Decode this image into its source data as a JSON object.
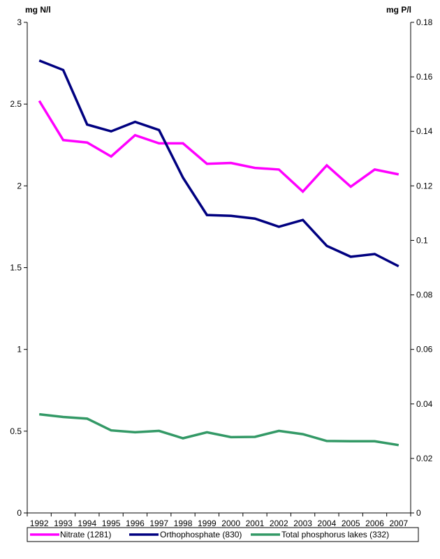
{
  "chart_data": {
    "type": "line",
    "categories": [
      "1992",
      "1993",
      "1994",
      "1995",
      "1996",
      "1997",
      "1998",
      "1999",
      "2000",
      "2001",
      "2002",
      "2003",
      "2004",
      "2005",
      "2006",
      "2007"
    ],
    "left_axis": {
      "unit_label": "mg N/l",
      "ylim": [
        0,
        3
      ],
      "ticks": [
        0,
        0.5,
        1,
        1.5,
        2,
        2.5,
        3
      ],
      "tick_labels": [
        "0",
        "0.5",
        "1",
        "1.5",
        "2",
        "2.5",
        "3"
      ]
    },
    "right_axis": {
      "unit_label": "mg P/l",
      "ylim": [
        0,
        0.18
      ],
      "ticks": [
        0,
        0.02,
        0.04,
        0.06,
        0.08,
        0.1,
        0.12,
        0.14,
        0.16,
        0.18
      ],
      "tick_labels": [
        "0",
        "0.02",
        "0.04",
        "0.06",
        "0.08",
        "0.1",
        "0.12",
        "0.14",
        "0.16",
        "0.18"
      ]
    },
    "series": [
      {
        "name": "Nitrate (1281)",
        "axis": "left",
        "color": "#ff00ff",
        "values": [
          2.52,
          2.28,
          2.265,
          2.18,
          2.31,
          2.26,
          2.26,
          2.135,
          2.14,
          2.11,
          2.1,
          1.965,
          2.125,
          1.995,
          2.1,
          2.07
        ]
      },
      {
        "name": "Orthophosphate (830)",
        "axis": "right",
        "color": "#000080",
        "values": [
          0.166,
          0.1625,
          0.1425,
          0.14,
          0.1435,
          0.1405,
          0.123,
          0.1093,
          0.109,
          0.108,
          0.105,
          0.1075,
          0.098,
          0.094,
          0.095,
          0.0905
        ]
      },
      {
        "name": "Total phosphorus lakes (332)",
        "axis": "right",
        "color": "#339966",
        "values": [
          0.0362,
          0.0352,
          0.0346,
          0.0303,
          0.0296,
          0.0301,
          0.0274,
          0.0296,
          0.0278,
          0.0279,
          0.0301,
          0.0289,
          0.0264,
          0.0263,
          0.0263,
          0.0249
        ]
      }
    ],
    "grid": false,
    "legend_position": "bottom"
  }
}
